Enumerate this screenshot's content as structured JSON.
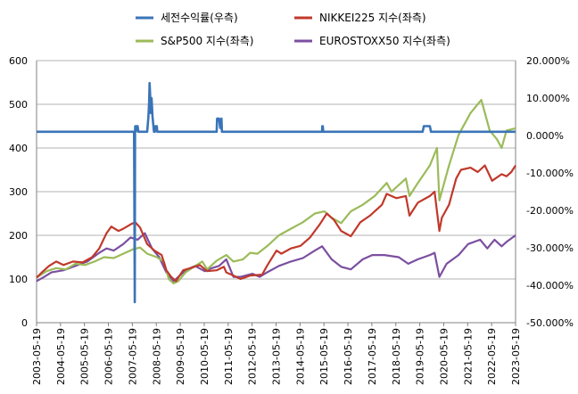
{
  "chart_data": {
    "type": "line",
    "title": "",
    "legend": {
      "placement": "top",
      "entries": [
        {
          "label": "세전수익률(우측)",
          "color": "#3a74b8"
        },
        {
          "label": "NIKKEI225 지수(좌측)",
          "color": "#c0392b"
        },
        {
          "label": "S&P500 지수(좌측)",
          "color": "#9bbb59"
        },
        {
          "label": "EUROSTOXX50 지수(좌측)",
          "color": "#7b4fa0"
        }
      ]
    },
    "x_ticks": [
      "2003-05-19",
      "2004-05-19",
      "2005-05-19",
      "2006-05-19",
      "2007-05-19",
      "2008-05-19",
      "2009-05-19",
      "2010-05-19",
      "2011-05-19",
      "2012-05-19",
      "2013-05-19",
      "2014-05-19",
      "2015-05-19",
      "2016-05-19",
      "2017-05-19",
      "2018-05-19",
      "2019-05-19",
      "2020-05-19",
      "2021-05-19",
      "2022-05-19",
      "2023-05-19"
    ],
    "y_left": {
      "ticks": [
        "0",
        "100",
        "200",
        "300",
        "400",
        "500",
        "600"
      ],
      "range": [
        0,
        600
      ]
    },
    "y_right": {
      "ticks": [
        "-50.000%",
        "-40.000%",
        "-30.000%",
        "-20.000%",
        "-10.000%",
        "0.000%",
        "10.000%",
        "20.000%"
      ],
      "range": [
        -50,
        20
      ]
    },
    "grid": "horizontal",
    "x_range": [
      2003.38,
      2023.38
    ],
    "series": [
      {
        "name": "세전수익률(우측)",
        "axis": "right",
        "color": "#3a74b8",
        "x": [
          2003.38,
          2007.45,
          2007.48,
          2007.49,
          2007.5,
          2007.52,
          2007.55,
          2007.6,
          2007.63,
          2007.65,
          2007.8,
          2008.0,
          2008.05,
          2008.08,
          2008.1,
          2008.12,
          2008.15,
          2008.18,
          2008.22,
          2008.28,
          2008.32,
          2008.35,
          2008.4,
          2008.42,
          2008.48,
          2008.52,
          2008.58,
          2010.9,
          2010.92,
          2011.0,
          2011.05,
          2011.1,
          2011.12,
          2011.18,
          2015.3,
          2015.31,
          2015.33,
          2015.35,
          2019.5,
          2019.55,
          2019.65,
          2019.8,
          2019.85,
          2023.38
        ],
        "y": [
          1.0,
          1.0,
          -44.5,
          1.0,
          2.5,
          1.0,
          2.5,
          2.5,
          1.0,
          1.0,
          1.0,
          1.0,
          5.0,
          9.0,
          14.0,
          11.0,
          6.0,
          10.0,
          5.0,
          1.0,
          1.0,
          2.5,
          2.5,
          1.0,
          1.0,
          1.0,
          1.0,
          1.0,
          4.5,
          4.5,
          2.0,
          4.5,
          1.0,
          1.0,
          1.0,
          2.5,
          2.5,
          1.0,
          1.0,
          2.5,
          2.5,
          2.5,
          1.0,
          1.0
        ]
      },
      {
        "name": "NIKKEI225 지수(좌측)",
        "axis": "left",
        "color": "#c0392b",
        "x": [
          2003.38,
          2003.6,
          2003.9,
          2004.2,
          2004.5,
          2004.9,
          2005.3,
          2005.7,
          2006.0,
          2006.3,
          2006.5,
          2006.8,
          2007.0,
          2007.3,
          2007.5,
          2007.7,
          2008.0,
          2008.3,
          2008.6,
          2008.8,
          2009.0,
          2009.2,
          2009.5,
          2009.8,
          2010.2,
          2010.5,
          2010.9,
          2011.2,
          2011.3,
          2011.6,
          2011.9,
          2012.3,
          2012.8,
          2013.0,
          2013.4,
          2013.6,
          2014.0,
          2014.4,
          2014.8,
          2015.2,
          2015.5,
          2015.8,
          2016.1,
          2016.5,
          2016.9,
          2017.3,
          2017.8,
          2018.0,
          2018.4,
          2018.8,
          2018.95,
          2019.3,
          2019.8,
          2020.0,
          2020.2,
          2020.3,
          2020.6,
          2020.9,
          2021.1,
          2021.5,
          2021.8,
          2022.1,
          2022.4,
          2022.8,
          2023.0,
          2023.2,
          2023.38
        ],
        "y": [
          103,
          115,
          130,
          140,
          132,
          140,
          138,
          150,
          170,
          205,
          220,
          210,
          215,
          225,
          230,
          218,
          180,
          165,
          155,
          120,
          105,
          95,
          120,
          125,
          132,
          118,
          120,
          128,
          115,
          108,
          100,
          108,
          110,
          130,
          165,
          158,
          170,
          176,
          195,
          225,
          250,
          235,
          210,
          198,
          230,
          245,
          270,
          295,
          285,
          290,
          245,
          275,
          290,
          300,
          210,
          240,
          270,
          330,
          350,
          355,
          345,
          360,
          325,
          340,
          335,
          345,
          360
        ]
      },
      {
        "name": "S&P500 지수(좌측)",
        "axis": "left",
        "color": "#9bbb59",
        "x": [
          2003.38,
          2003.8,
          2004.2,
          2004.6,
          2005.0,
          2005.4,
          2005.8,
          2006.2,
          2006.6,
          2007.0,
          2007.4,
          2007.7,
          2008.0,
          2008.4,
          2008.7,
          2008.9,
          2009.1,
          2009.3,
          2009.6,
          2010.0,
          2010.3,
          2010.5,
          2010.9,
          2011.3,
          2011.6,
          2012.0,
          2012.3,
          2012.6,
          2013.0,
          2013.5,
          2014.0,
          2014.5,
          2015.0,
          2015.4,
          2015.7,
          2016.1,
          2016.5,
          2017.0,
          2017.5,
          2018.0,
          2018.2,
          2018.8,
          2018.95,
          2019.3,
          2019.8,
          2020.1,
          2020.2,
          2020.6,
          2021.0,
          2021.5,
          2021.95,
          2022.3,
          2022.6,
          2022.8,
          2023.0,
          2023.38
        ],
        "y": [
          103,
          118,
          125,
          122,
          135,
          132,
          140,
          150,
          148,
          158,
          168,
          172,
          158,
          150,
          140,
          100,
          90,
          95,
          115,
          130,
          140,
          122,
          142,
          155,
          140,
          145,
          160,
          158,
          175,
          200,
          215,
          230,
          250,
          255,
          240,
          228,
          255,
          270,
          290,
          320,
          300,
          330,
          290,
          320,
          360,
          400,
          280,
          360,
          430,
          480,
          510,
          440,
          420,
          400,
          440,
          445
        ]
      },
      {
        "name": "EUROSTOXX50 지수(좌측)",
        "axis": "left",
        "color": "#7b4fa0",
        "x": [
          2003.38,
          2003.7,
          2004.0,
          2004.5,
          2005.0,
          2005.5,
          2006.0,
          2006.3,
          2006.6,
          2007.0,
          2007.3,
          2007.6,
          2007.9,
          2008.2,
          2008.5,
          2008.8,
          2009.1,
          2009.3,
          2009.6,
          2010.0,
          2010.4,
          2010.7,
          2011.0,
          2011.3,
          2011.6,
          2011.9,
          2012.4,
          2012.7,
          2013.0,
          2013.5,
          2014.0,
          2014.5,
          2015.0,
          2015.3,
          2015.7,
          2016.1,
          2016.5,
          2017.0,
          2017.4,
          2017.9,
          2018.5,
          2018.9,
          2019.3,
          2019.8,
          2020.0,
          2020.2,
          2020.5,
          2021.0,
          2021.4,
          2021.9,
          2022.2,
          2022.5,
          2022.8,
          2023.0,
          2023.38
        ],
        "y": [
          95,
          105,
          115,
          120,
          130,
          140,
          160,
          170,
          165,
          180,
          195,
          190,
          205,
          170,
          150,
          115,
          95,
          105,
          120,
          130,
          118,
          125,
          130,
          145,
          105,
          105,
          112,
          105,
          115,
          130,
          140,
          148,
          165,
          175,
          145,
          128,
          122,
          145,
          155,
          155,
          150,
          135,
          145,
          155,
          160,
          105,
          135,
          155,
          180,
          190,
          170,
          190,
          175,
          185,
          200
        ]
      }
    ]
  }
}
